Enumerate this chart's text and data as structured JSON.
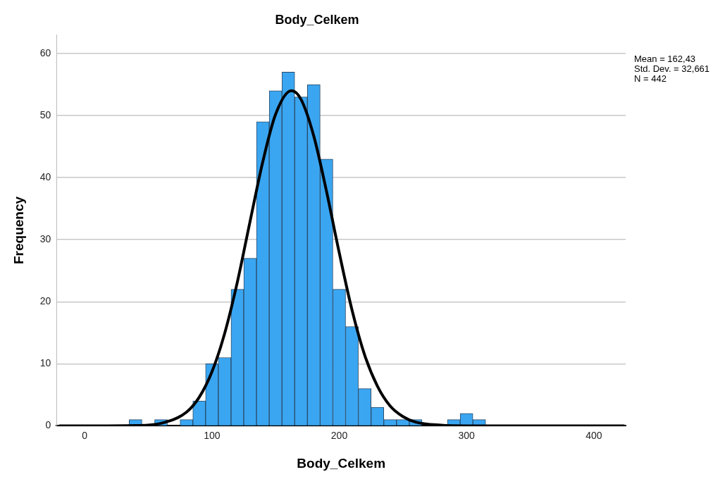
{
  "chart_data": {
    "type": "histogram",
    "title": "Body_Celkem",
    "xlabel": "Body_Celkem",
    "ylabel": "Frequency",
    "bins": [
      35,
      45,
      55,
      65,
      75,
      85,
      95,
      105,
      115,
      125,
      135,
      145,
      155,
      165,
      175,
      185,
      195,
      205,
      215,
      225,
      235,
      245,
      255,
      265,
      275,
      285,
      295,
      305,
      315
    ],
    "values": [
      1,
      0,
      1,
      0,
      1,
      4,
      10,
      11,
      22,
      27,
      49,
      54,
      57,
      53,
      55,
      43,
      22,
      16,
      6,
      3,
      1,
      1,
      1,
      0,
      0,
      1,
      2,
      1
    ],
    "color": "#3aa6f2",
    "series": [
      {
        "type": "line",
        "color": "#000000",
        "x": [
          -20,
          0,
          40,
          60,
          80,
          90,
          100,
          110,
          120,
          130,
          140,
          150,
          162.4,
          170,
          180,
          190,
          200,
          210,
          220,
          230,
          240,
          250,
          260,
          280,
          300,
          424
        ],
        "values": [
          0,
          0,
          0.05,
          0.4,
          2.2,
          4.6,
          8.7,
          14.9,
          23.2,
          33,
          42.6,
          50.2,
          54,
          52.6,
          46.7,
          37.8,
          27.9,
          18.7,
          11.4,
          6.4,
          3.2,
          1.5,
          0.6,
          0.1,
          0,
          0
        ]
      }
    ],
    "xlim": [
      -22,
      425
    ],
    "xticks": [
      0,
      100,
      200,
      300,
      400
    ],
    "ylim": [
      0,
      63
    ],
    "yticks": [
      0,
      10,
      20,
      30,
      40,
      50,
      60
    ],
    "grid": "y",
    "legend": false,
    "marker": "none",
    "line_style": "solid",
    "annotations": [
      "Mean = 162,43",
      "Std. Dev. = 32,661",
      "N = 442"
    ]
  }
}
